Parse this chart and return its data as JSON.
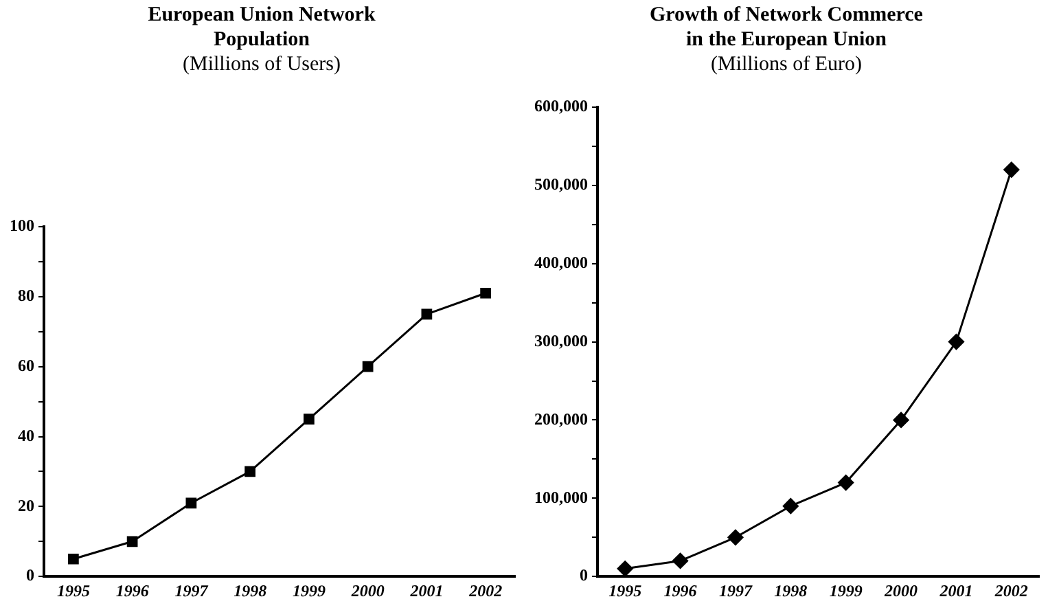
{
  "chart_data": [
    {
      "type": "line",
      "title": "European Union Network Population",
      "subtitle": "(Millions of Users)",
      "categories": [
        "1995",
        "1996",
        "1997",
        "1998",
        "1999",
        "2000",
        "2001",
        "2002"
      ],
      "values": [
        5,
        10,
        21,
        30,
        45,
        60,
        75,
        81
      ],
      "color": "#000000",
      "marker": "square",
      "ylim": [
        0,
        100
      ],
      "yticks": [
        0,
        {
          "value": 10,
          "label": null
        },
        20,
        {
          "value": 30,
          "label": null
        },
        40,
        {
          "value": 50,
          "label": null
        },
        60,
        {
          "value": 70,
          "label": null
        },
        80,
        {
          "value": 90,
          "label": null
        },
        100
      ]
    },
    {
      "type": "line",
      "title": "Growth of Network Commerce in the European Union",
      "subtitle": "(Millions of Euro)",
      "categories": [
        "1995",
        "1996",
        "1997",
        "1998",
        "1999",
        "2000",
        "2001",
        "2002"
      ],
      "values": [
        10000,
        20000,
        50000,
        90000,
        120000,
        200000,
        300000,
        520000
      ],
      "color": "#000000",
      "marker": "diamond",
      "ylim": [
        0,
        600000
      ],
      "yticks": [
        0,
        {
          "value": 50000,
          "label": null
        },
        "100,000",
        {
          "value": 150000,
          "label": null
        },
        {
          "value": 200000,
          "label": "200,000"
        },
        {
          "value": 250000,
          "label": null
        },
        {
          "value": 300000,
          "label": "300,000"
        },
        {
          "value": 350000,
          "label": null
        },
        {
          "value": 400000,
          "label": "400,000"
        },
        {
          "value": 450000,
          "label": null
        },
        {
          "value": 500000,
          "label": "500,000"
        },
        {
          "value": 550000,
          "label": null
        },
        {
          "value": 600000,
          "label": "600,000"
        }
      ]
    }
  ]
}
